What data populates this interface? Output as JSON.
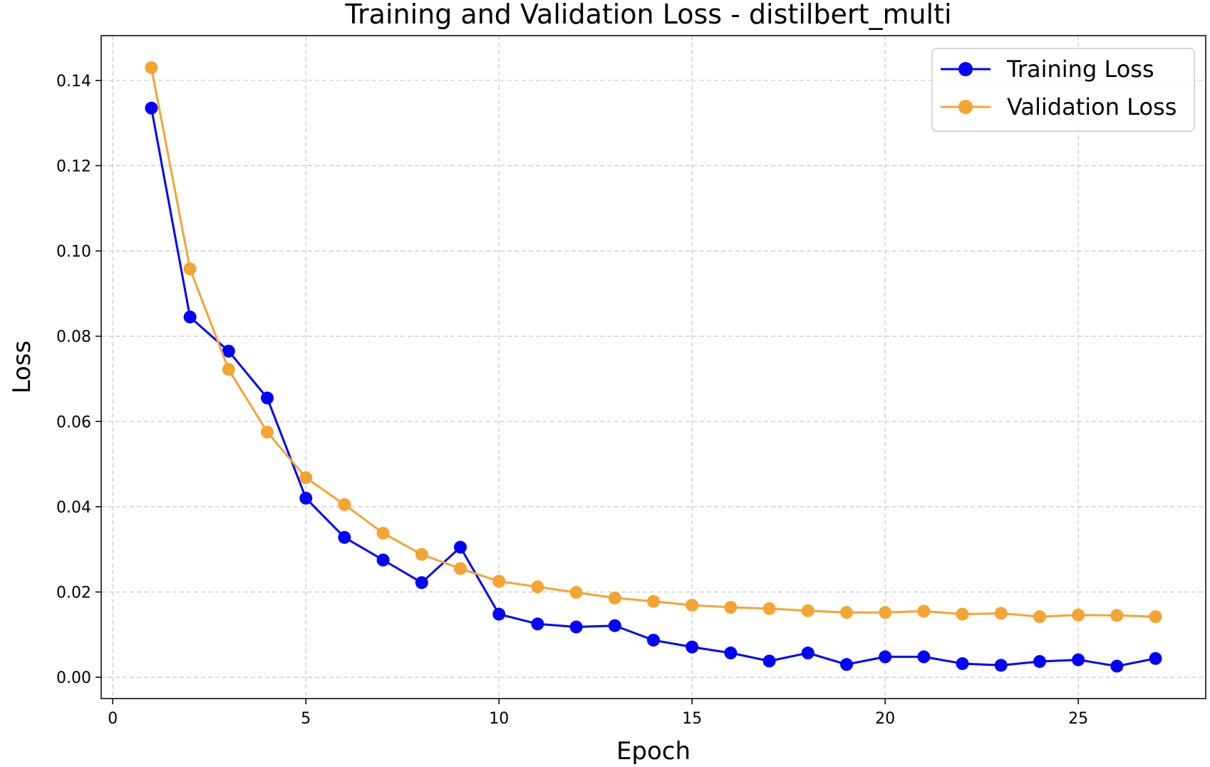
{
  "chart_data": {
    "type": "line",
    "title": "Training and Validation Loss - distilbert_multi",
    "xlabel": "Epoch",
    "ylabel": "Loss",
    "xlim": [
      -0.3,
      28.3
    ],
    "ylim": [
      -0.005,
      0.1505
    ],
    "xticks": [
      0,
      5,
      10,
      15,
      20,
      25
    ],
    "yticks": [
      0.0,
      0.02,
      0.04,
      0.06,
      0.08,
      0.1,
      0.12,
      0.14
    ],
    "ytick_labels": [
      "0.00",
      "0.02",
      "0.04",
      "0.06",
      "0.08",
      "0.10",
      "0.12",
      "0.14"
    ],
    "grid": true,
    "legend_position": "top-right",
    "x": [
      1,
      2,
      3,
      4,
      5,
      6,
      7,
      8,
      9,
      10,
      11,
      12,
      13,
      14,
      15,
      16,
      17,
      18,
      19,
      20,
      21,
      22,
      23,
      24,
      25,
      26,
      27
    ],
    "series": [
      {
        "name": "Training Loss",
        "color": "#0000ff",
        "values": [
          0.1335,
          0.0845,
          0.0765,
          0.0655,
          0.042,
          0.0328,
          0.0275,
          0.0222,
          0.0305,
          0.0148,
          0.0125,
          0.0118,
          0.0121,
          0.0087,
          0.0071,
          0.0057,
          0.0038,
          0.0057,
          0.003,
          0.0048,
          0.0048,
          0.0032,
          0.0028,
          0.0037,
          0.0041,
          0.0026,
          0.0044
        ]
      },
      {
        "name": "Validation Loss",
        "color": "#f4a433",
        "values": [
          0.143,
          0.0958,
          0.0722,
          0.0575,
          0.0468,
          0.0405,
          0.0338,
          0.0288,
          0.0255,
          0.0225,
          0.0212,
          0.0199,
          0.0186,
          0.0178,
          0.0169,
          0.0164,
          0.0161,
          0.0156,
          0.0152,
          0.0152,
          0.0155,
          0.0148,
          0.015,
          0.0142,
          0.0146,
          0.0145,
          0.0142
        ]
      }
    ]
  }
}
